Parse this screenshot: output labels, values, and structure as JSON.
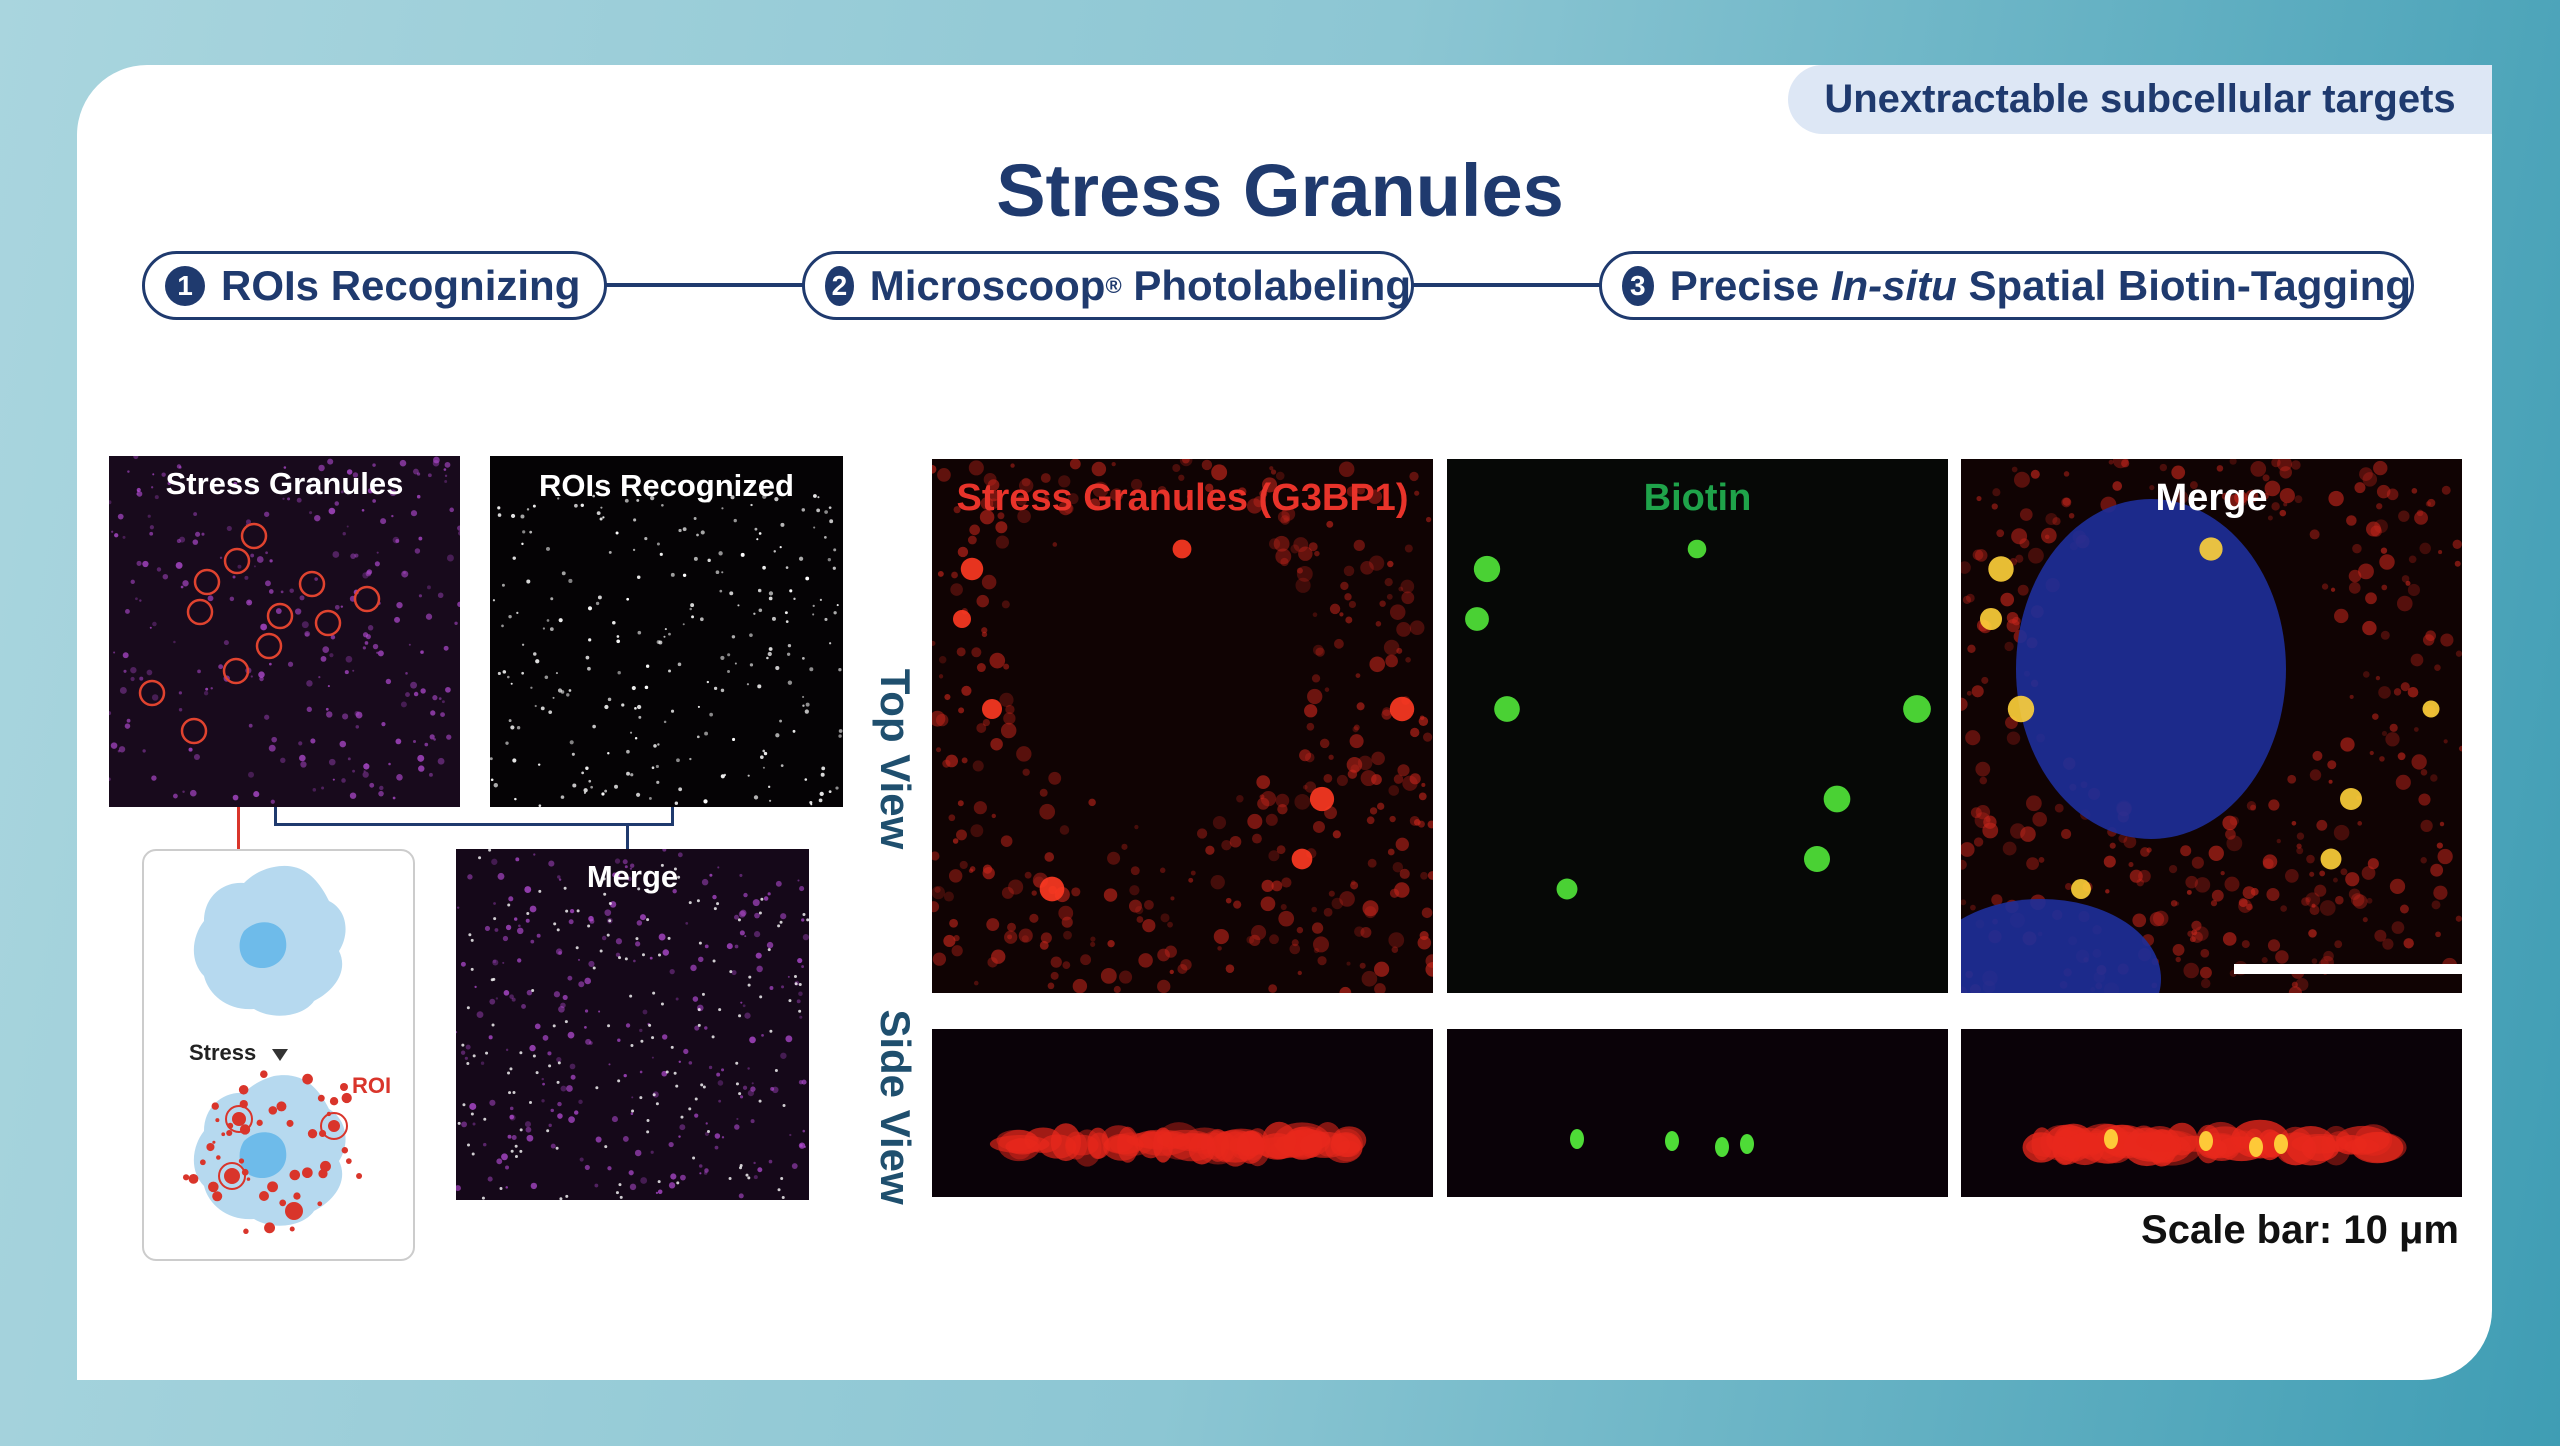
{
  "tag": "Unextractable subcellular targets",
  "title": "Stress Granules",
  "steps": [
    {
      "num": "1",
      "label": "ROIs Recognizing"
    },
    {
      "num": "2",
      "label": "Microscoop",
      "sup": "®",
      "label2": " Photolabeling"
    },
    {
      "num": "3",
      "label_pre": "Precise ",
      "label_italic": "In-situ",
      "label_post": " Spatial Biotin-Tagging"
    }
  ],
  "left": {
    "stress_granules": "Stress Granules",
    "rois_recognized": "ROIs Recognized",
    "merge": "Merge",
    "diagram": {
      "stress": "Stress",
      "roi": "ROI"
    }
  },
  "right": {
    "top_view": "Top View",
    "side_view": "Side View",
    "channels": [
      {
        "label": "Stress Granules (G3BP1)",
        "color": "#e8332a"
      },
      {
        "label": "Biotin",
        "color": "#1fa34a"
      },
      {
        "label": "Merge",
        "color": "#ffffff"
      }
    ],
    "scale_bar": "Scale bar: 10 μm"
  },
  "colors": {
    "navy": "#1f3a6e",
    "roi_red": "#d9352b",
    "cell_blue": "#b6d9ef"
  }
}
